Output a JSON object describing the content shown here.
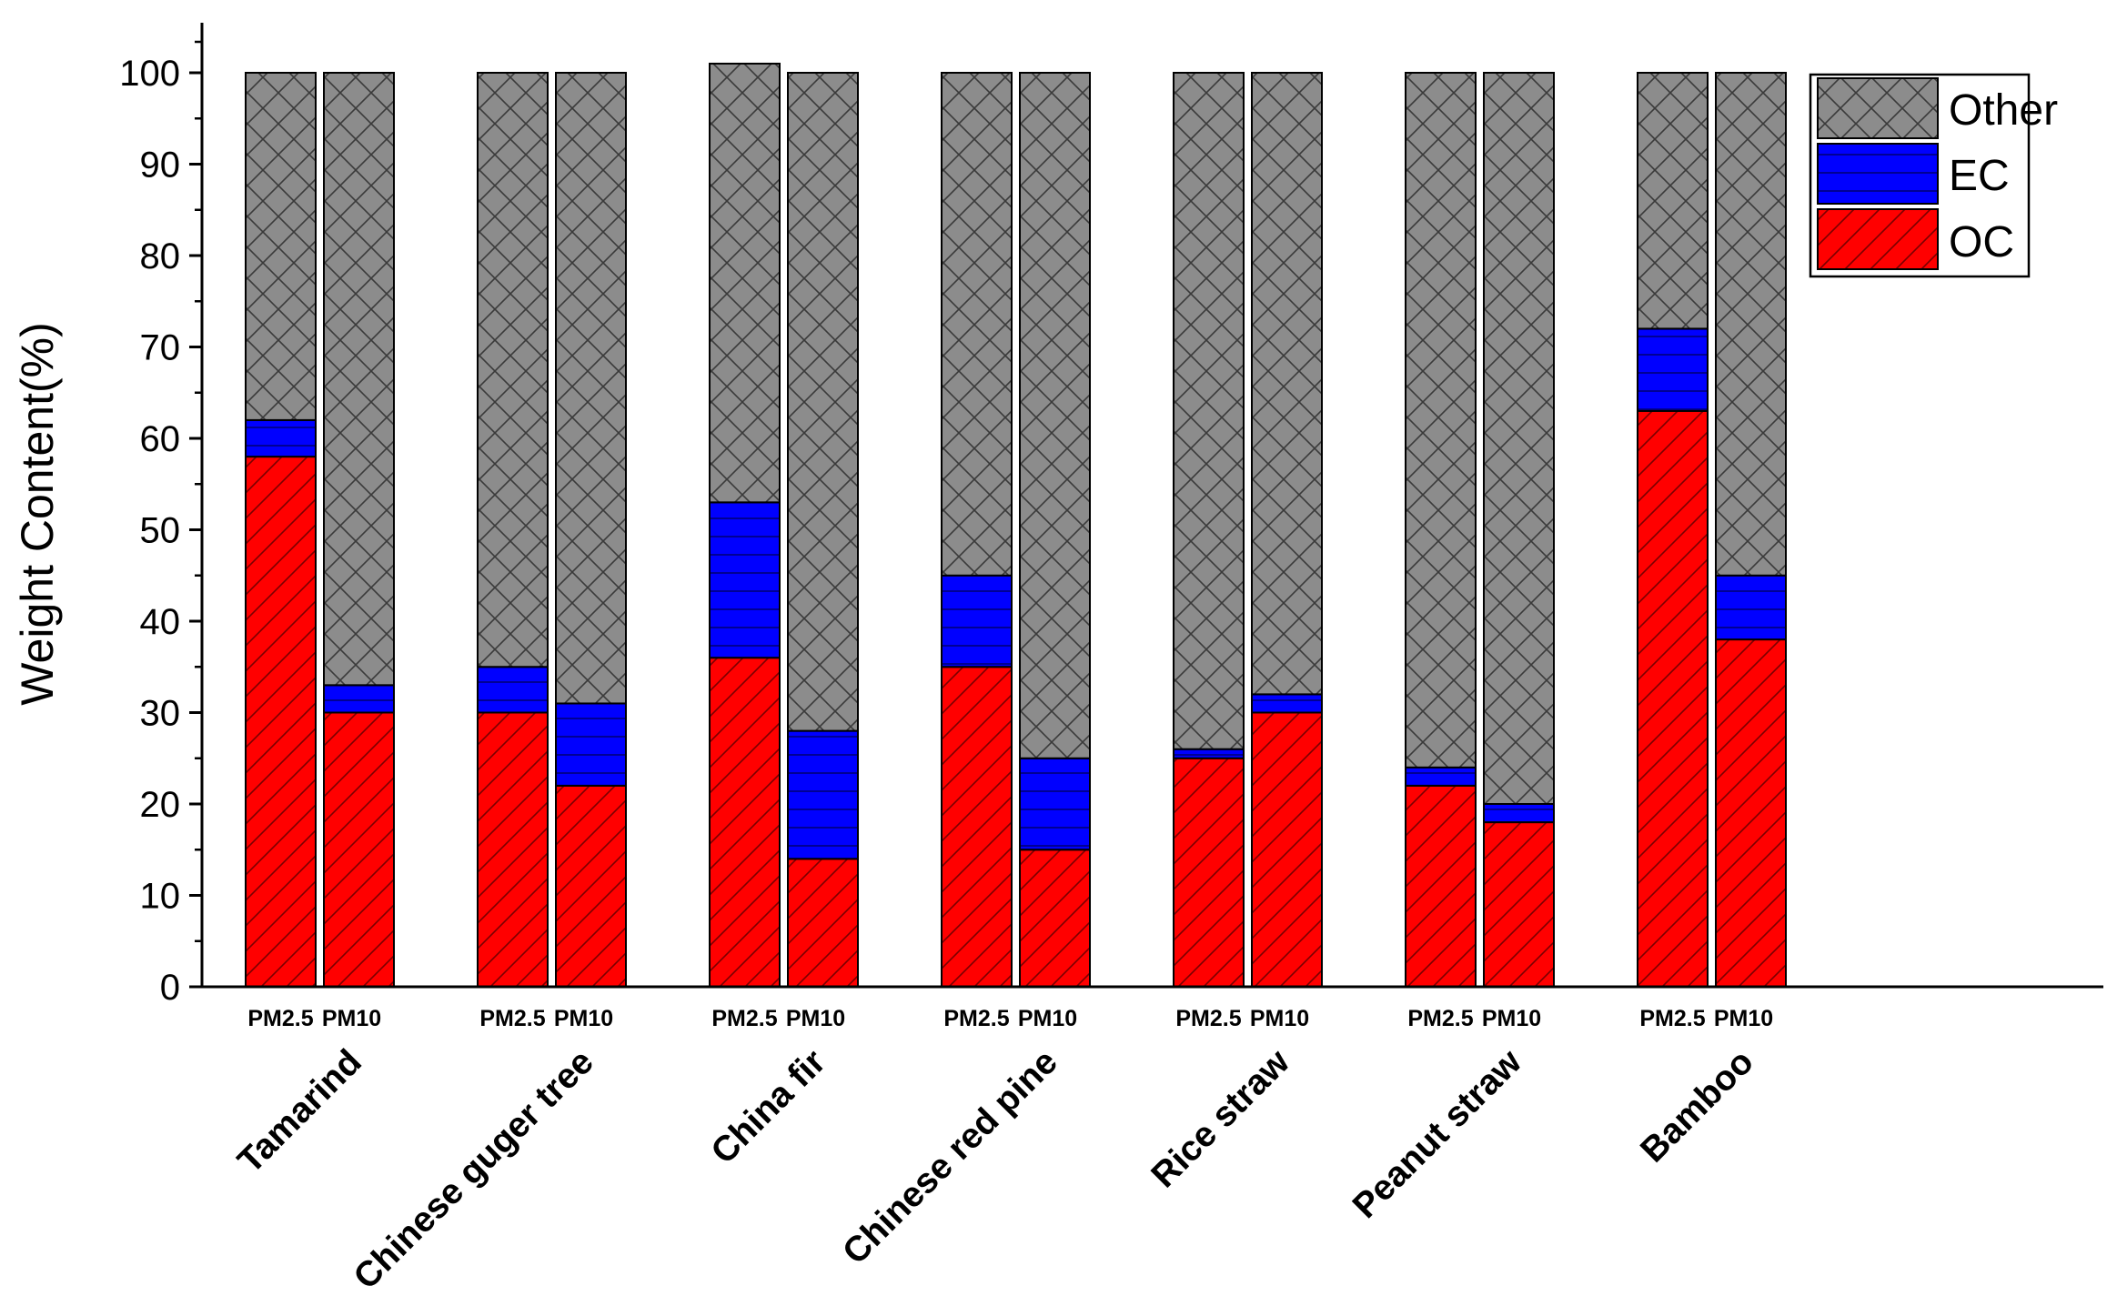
{
  "chart_data": {
    "type": "bar",
    "stacked": true,
    "title": "",
    "xlabel": "",
    "ylabel": "Weight Content(%)",
    "ylim": [
      0,
      100
    ],
    "yticks": [
      0,
      10,
      20,
      30,
      40,
      50,
      60,
      70,
      80,
      90,
      100
    ],
    "categories": [
      "Tamarind",
      "Chinese guger tree",
      "China fir",
      "Chinese red pine",
      "Rice straw",
      "Peanut straw",
      "Bamboo"
    ],
    "subcategories": [
      "PM2.5",
      "PM10"
    ],
    "series": [
      {
        "name": "OC",
        "color": "#ff0000",
        "pattern": "diagonal-hatch",
        "values": [
          [
            58,
            30
          ],
          [
            30,
            22
          ],
          [
            36,
            14
          ],
          [
            35,
            15
          ],
          [
            25,
            30
          ],
          [
            22,
            18
          ],
          [
            63,
            38
          ]
        ]
      },
      {
        "name": "EC",
        "color": "#0000ff",
        "pattern": "horizontal-lines",
        "values": [
          [
            4,
            3
          ],
          [
            5,
            9
          ],
          [
            17,
            14
          ],
          [
            10,
            10
          ],
          [
            1,
            2
          ],
          [
            2,
            2
          ],
          [
            9,
            7
          ]
        ]
      },
      {
        "name": "Other",
        "color": "#8c8c8c",
        "pattern": "crosshatch",
        "values": [
          [
            38,
            67
          ],
          [
            65,
            69
          ],
          [
            48,
            72
          ],
          [
            55,
            75
          ],
          [
            74,
            68
          ],
          [
            76,
            80
          ],
          [
            28,
            55
          ]
        ]
      }
    ],
    "legend": {
      "position": "top-right",
      "entries": [
        "Other",
        "EC",
        "OC"
      ]
    }
  }
}
